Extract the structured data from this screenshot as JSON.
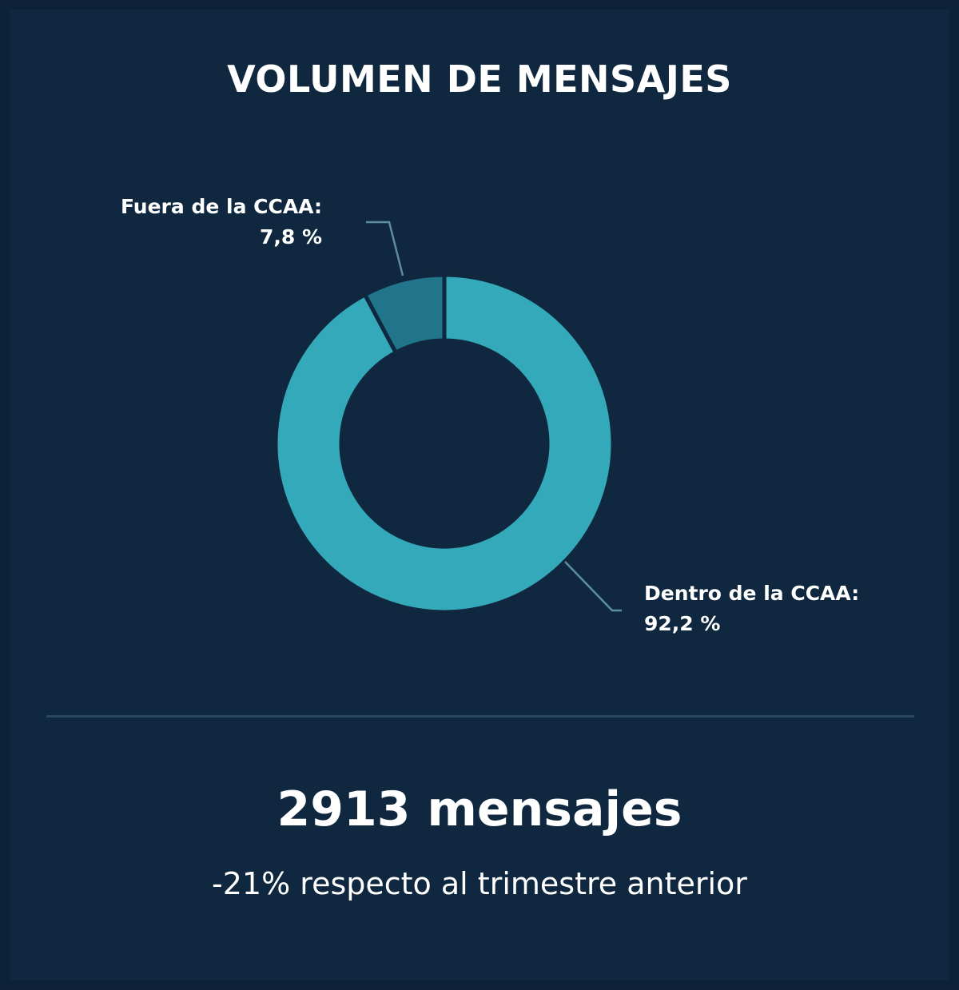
{
  "title": "VOLUMEN DE MENSAJES",
  "colors": {
    "background": "#10283f",
    "dentro": "#33a9ba",
    "fuera": "#21758a",
    "leader": "#5d8ea0",
    "divider": "#2a4760",
    "text": "#ffffff"
  },
  "slices": [
    {
      "label": "Fuera de la CCAA:",
      "value_text": "7,8 %"
    },
    {
      "label": "Dentro de la CCAA:",
      "value_text": "92,2 %"
    }
  ],
  "summary": {
    "total": "2913 mensajes",
    "change": "-21% respecto al trimestre anterior"
  },
  "chart_data": {
    "type": "pie",
    "subtype": "donut",
    "title": "VOLUMEN DE MENSAJES",
    "categories": [
      "Dentro de la CCAA",
      "Fuera de la CCAA"
    ],
    "values": [
      92.2,
      7.8
    ],
    "unit": "%",
    "colors": [
      "#33a9ba",
      "#21758a"
    ],
    "annotations": [
      "Dentro de la CCAA: 92,2 %",
      "Fuera de la CCAA: 7,8 %"
    ],
    "total_messages": 2913,
    "change_vs_previous_quarter": "-21%",
    "legend": "none (direct labels with leader lines)"
  }
}
